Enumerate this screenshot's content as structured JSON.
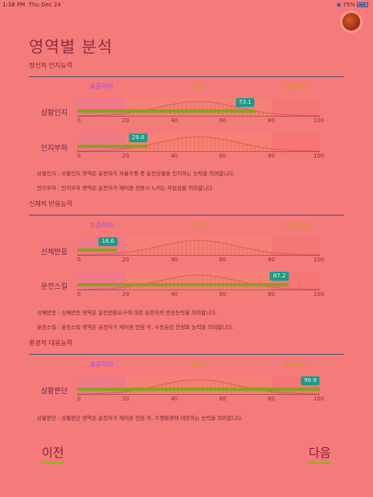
{
  "status": {
    "time": "1:38 PM",
    "date": "Thu Dec 24",
    "battery": "75%"
  },
  "title": "영역별 분석",
  "scale": {
    "below": "표준이하",
    "standard": "표준",
    "above": "표준이상"
  },
  "ticks": [
    "0",
    "20",
    "40",
    "60",
    "80",
    "100"
  ],
  "sections": [
    {
      "title": "정신적 인지능력",
      "metrics": [
        {
          "label": "상황인지",
          "value": 73.1,
          "value_text": "73.1"
        },
        {
          "label": "인지부하",
          "value": 29.0,
          "value_text": "29.0"
        }
      ],
      "descriptions": [
        "상황인지 : 상황인지 영역은 운전자가 자율주행 중 운전상황을 인지하는 능력을 의미합니다.",
        "인지부하 : 인지부하 영역은 운전자가 제어권 전환시 느끼는 부담감을 의미합니다."
      ]
    },
    {
      "title": "신체적 반응능력",
      "metrics": [
        {
          "label": "신체반응",
          "value": 16.6,
          "value_text": "16.6"
        },
        {
          "label": "운전스킬",
          "value": 87.2,
          "value_text": "87.2"
        }
      ],
      "descriptions": [
        "신체반응 : 신체반응 영역은 운전전환요구에 대한 운전자의 반응능력을 의미합니다.",
        "운전스킬 : 운전스킬 영역은 운전자가 제어권 전환 후, 수동운전 안정화 능력을 의미합니다."
      ]
    },
    {
      "title": "환경적 대응능력",
      "metrics": [
        {
          "label": "상황판단",
          "value": 99.9,
          "value_text": "99.9"
        }
      ],
      "descriptions": [
        "상황판단 : 상황판단 영역은 운전자가 제어권 전환 후, 주행환경에 대응하는 능력을 의미합니다."
      ]
    }
  ],
  "nav": {
    "prev": "이전",
    "next": "다음"
  },
  "colors": {
    "background": "#f57a7a",
    "bar": "#8aa020",
    "bubble": "#1f9a88"
  }
}
